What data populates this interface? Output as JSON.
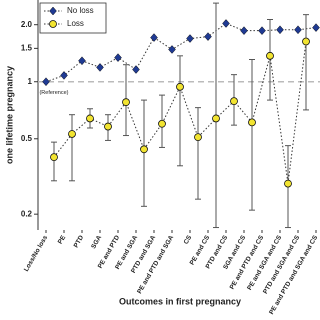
{
  "chart_data": {
    "type": "line",
    "y_label": "one lifetime pregnancy",
    "x_label": "Outcomes in first pregnancy",
    "annotation": "(Reference)",
    "log_y": true,
    "ylim": [
      0.165,
      2.7
    ],
    "yticks": [
      0.2,
      0.5,
      1,
      1.5,
      {
        "value": 2,
        "label": "2.0"
      }
    ],
    "reference_line": 1,
    "legend_position": "top-left",
    "categories": [
      "Loss/No loss",
      "PE",
      "PTD",
      "SGA",
      "PE and PTD",
      "PE and SGA",
      "PTD and SGA",
      "PE and PTD and SGA",
      "CS",
      "PE and CS",
      "PTD and CS",
      "SGA and CS",
      "PE and PTD and CS",
      "PE and SGA and CS",
      "PTD and SGA and CS",
      "PE and PTD and SGA and CS"
    ],
    "series": [
      {
        "name": "No loss",
        "color": "#1f3a93",
        "marker": "diamond",
        "values": [
          1.0,
          1.08,
          1.29,
          1.19,
          1.34,
          1.16,
          1.71,
          1.48,
          1.69,
          1.73,
          2.03,
          1.86,
          1.86,
          1.88,
          1.88,
          1.93
        ]
      },
      {
        "name": "Loss",
        "color": "#f2e431",
        "marker": "circle",
        "values": [
          null,
          0.4,
          0.53,
          0.64,
          0.58,
          0.78,
          0.44,
          0.6,
          0.94,
          0.51,
          0.64,
          0.79,
          0.61,
          1.37,
          0.29,
          1.63
        ],
        "ci_lower": [
          null,
          0.3,
          0.3,
          0.57,
          0.49,
          0.52,
          0.22,
          0.45,
          0.36,
          0.24,
          0.17,
          0.59,
          0.21,
          0.8,
          0.17,
          0.71
        ],
        "ci_upper": [
          null,
          0.48,
          0.67,
          0.72,
          0.67,
          1.23,
          0.8,
          0.85,
          1.37,
          0.73,
          2.6,
          1.09,
          1.31,
          2.13,
          0.46,
          2.26
        ]
      }
    ]
  }
}
